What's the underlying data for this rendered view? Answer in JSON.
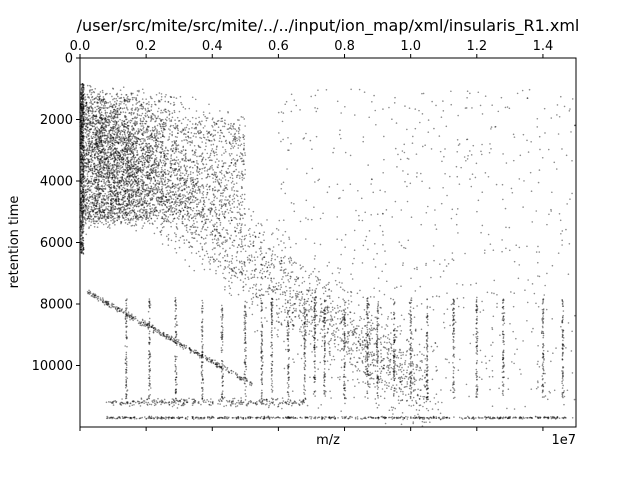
{
  "chart_data": {
    "type": "scatter",
    "title": "/user/src/mite/src/mite/../../input/ion_map/xml/insularis_R1.xml",
    "xlabel": "m/z",
    "ylabel": "retention time",
    "x_offset_label": "1e7",
    "xlim": [
      0,
      1.5
    ],
    "ylim": [
      12000,
      0
    ],
    "x_ticks_top": [
      "0.0",
      "0.2",
      "0.4",
      "0.6",
      "0.8",
      "1.0",
      "1.2",
      "1.4"
    ],
    "y_ticks": [
      "0",
      "2000",
      "4000",
      "6000",
      "8000",
      "10000"
    ],
    "grid": false,
    "marker": {
      "color": "#000000",
      "size": 0.8,
      "alpha": 0.45
    },
    "series": [
      {
        "x": [
          0.01,
          0.02,
          0.03,
          0.05,
          0.07,
          0.09,
          0.1,
          0.12,
          0.14,
          0.15,
          0.17,
          0.19,
          0.21,
          0.23,
          0.25,
          0.27,
          0.29,
          0.31,
          0.33,
          0.35,
          0.37,
          0.39,
          0.41,
          0.43,
          0.45,
          0.47,
          0.49,
          0.51,
          0.53,
          0.55,
          0.57,
          0.59,
          0.61,
          0.63,
          0.65,
          0.67,
          0.69,
          0.71,
          0.73,
          0.75,
          0.77,
          0.79,
          0.81,
          0.83,
          0.85,
          0.87,
          0.89,
          0.91,
          0.93,
          0.95,
          0.97,
          0.99,
          1.01,
          1.03,
          1.05,
          1.07,
          1.1,
          1.13,
          1.16,
          1.19,
          1.22,
          1.25,
          1.28,
          1.31,
          1.34,
          1.37,
          1.4,
          1.43,
          1.46,
          1.49
        ],
        "y": [
          1200,
          4600,
          900,
          2500,
          4800,
          1800,
          3000,
          3200,
          2800,
          4500,
          2600,
          3100,
          2900,
          3300,
          3500,
          3700,
          3600,
          3900,
          4200,
          4100,
          4400,
          4600,
          4300,
          5000,
          4700,
          5200,
          5400,
          5600,
          5800,
          6000,
          6200,
          6400,
          6600,
          7000,
          7200,
          7600,
          8200,
          8600,
          8400,
          8800,
          9000,
          9200,
          9400,
          8300,
          9600,
          9800,
          9300,
          9100,
          10000,
          10200,
          10400,
          10600,
          10800,
          11000,
          9700,
          9500,
          8600,
          8900,
          7800,
          9000,
          8200,
          8400,
          9900,
          8900,
          9200,
          8800,
          10100,
          9600,
          10300,
          11700
        ]
      }
    ]
  }
}
